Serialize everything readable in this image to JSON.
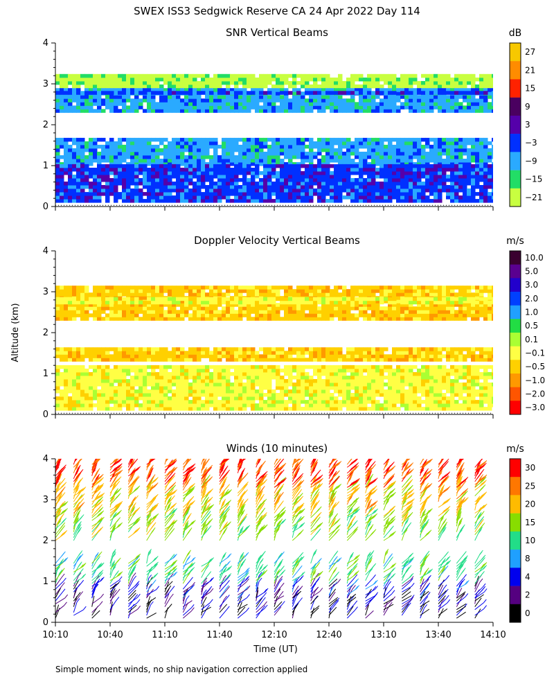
{
  "figure_title": "SWEX ISS3 Sedgwick Reserve CA  24 Apr 2022 Day 114",
  "footnote": "Simple moment winds, no ship navigation correction applied",
  "shared_axes": {
    "ylabel": "Altitude (km)",
    "xlabel": "Time (UT)",
    "x_ticklabels": [
      "10:10",
      "10:40",
      "11:10",
      "11:40",
      "12:10",
      "12:40",
      "13:10",
      "13:40",
      "14:10"
    ],
    "y_ticklabels": [
      "0",
      "1",
      "2",
      "3",
      "4"
    ],
    "xlim_hours": [
      10.1667,
      14.1667
    ],
    "ylim_km": [
      0,
      4
    ]
  },
  "chart_data": [
    {
      "type": "heatmap",
      "title": "SNR Vertical Beams",
      "units": "dB",
      "xlabel": "",
      "ylabel": "Altitude (km)",
      "ylim": [
        0,
        4
      ],
      "colorbar": {
        "labels": [
          "27",
          "21",
          "15",
          "9",
          "3",
          "−3",
          "−9",
          "−15",
          "−21"
        ],
        "colors": [
          "#f7c800",
          "#ff8c00",
          "#ff2200",
          "#4a0060",
          "#5500aa",
          "#0030ff",
          "#2aaaff",
          "#22dd66",
          "#c8ff40"
        ]
      },
      "layers": [
        {
          "label": "−21",
          "alt_range_km": [
            2.9,
            3.2
          ]
        },
        {
          "label": "−9",
          "alt_range_km": [
            2.3,
            2.85
          ]
        },
        {
          "label": "−3",
          "alt_range_km": [
            2.74,
            2.8
          ]
        },
        {
          "label": "−9",
          "alt_range_km": [
            1.0,
            1.6
          ]
        },
        {
          "label": "−3",
          "alt_range_km": [
            0.1,
            1.0
          ]
        }
      ]
    },
    {
      "type": "heatmap",
      "title": "Doppler Velocity Vertical Beams",
      "units": "m/s",
      "xlabel": "",
      "ylabel": "Altitude (km)",
      "ylim": [
        0,
        4
      ],
      "colorbar": {
        "labels": [
          "10.0",
          "5.0",
          "3.0",
          "2.0",
          "1.0",
          "0.5",
          "0.1",
          "−0.1",
          "−0.5",
          "−1.0",
          "−2.0",
          "−3.0"
        ],
        "colors": [
          "#3a0030",
          "#5a0090",
          "#2200cc",
          "#0040ff",
          "#20a0ff",
          "#22dd44",
          "#aaff33",
          "#ffff44",
          "#ffd000",
          "#ff9900",
          "#ff5500",
          "#ff0000"
        ]
      },
      "layers": [
        {
          "label": "−0.5",
          "alt_range_km": [
            2.3,
            3.1
          ]
        },
        {
          "label": "−0.1",
          "alt_range_km": [
            2.7,
            2.85
          ]
        },
        {
          "label": "−0.5",
          "alt_range_km": [
            1.3,
            1.6
          ]
        },
        {
          "label": "−0.1",
          "alt_range_km": [
            0.1,
            1.2
          ]
        }
      ]
    },
    {
      "type": "scatter",
      "title": "Winds (10 minutes)",
      "units": "m/s",
      "xlabel": "Time (UT)",
      "ylabel": "Altitude (km)",
      "ylim": [
        0,
        4
      ],
      "colorbar": {
        "labels": [
          "30",
          "25",
          "20",
          "15",
          "10",
          "8",
          "4",
          "2",
          "0"
        ],
        "colors": [
          "#ff0000",
          "#ff7700",
          "#ffbb00",
          "#88dd00",
          "#22dd88",
          "#1fa0ff",
          "#0000ee",
          "#550080",
          "#000000"
        ]
      },
      "profiles_hours": [
        10.1667,
        10.3333,
        10.5,
        10.6667,
        10.8333,
        11.0,
        11.1667,
        11.3333,
        11.5,
        11.6667,
        11.8333,
        12.0,
        12.1667,
        12.3333,
        12.5,
        12.6667,
        12.8333,
        13.0,
        13.1667,
        13.3333,
        13.5,
        13.6667,
        13.8333,
        14.0
      ],
      "wind_layers": [
        {
          "alt_range_km": [
            0.1,
            0.6
          ],
          "speed_ms": 3
        },
        {
          "alt_range_km": [
            0.6,
            0.95
          ],
          "speed_ms": 5
        },
        {
          "alt_range_km": [
            0.95,
            1.5
          ],
          "speed_ms": 13
        },
        {
          "alt_range_km": [
            2.0,
            2.6
          ],
          "speed_ms": 17
        },
        {
          "alt_range_km": [
            2.6,
            3.3
          ],
          "speed_ms": 22
        },
        {
          "alt_range_km": [
            3.3,
            3.9
          ],
          "speed_ms": 30
        }
      ]
    }
  ]
}
